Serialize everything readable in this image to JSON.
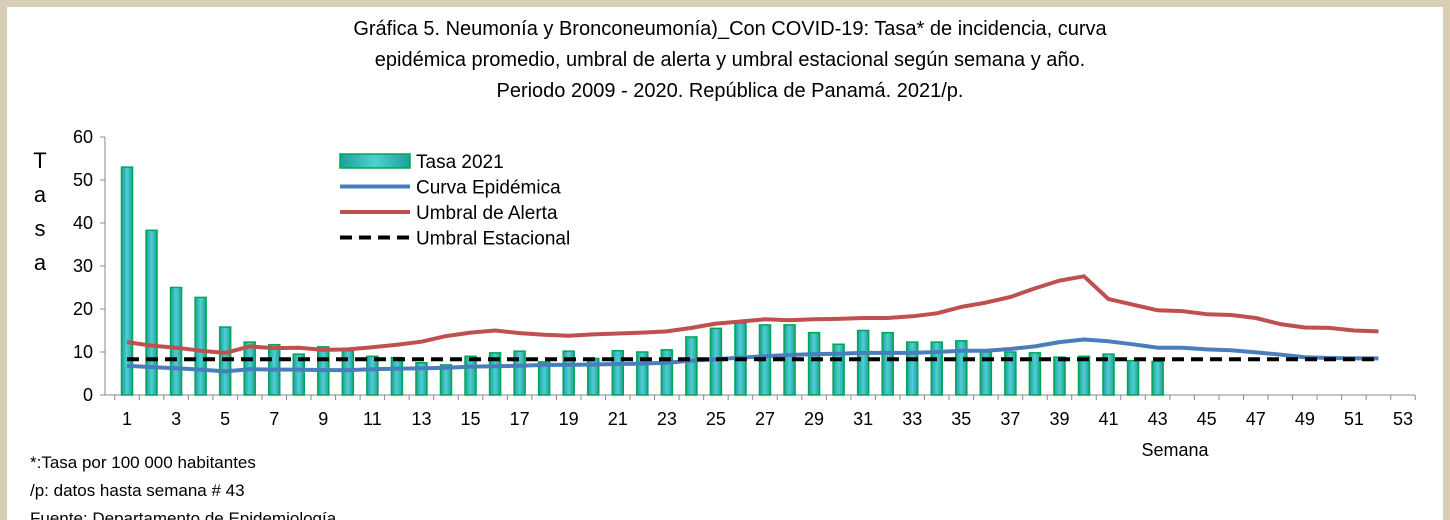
{
  "chart_data": {
    "type": "bar-line",
    "title": [
      "Gráfica 5. Neumonía y Bronconeumonía)_Con COVID-19: Tasa* de incidencia, curva",
      "epidémica promedio, umbral de alerta  y umbral estacional según semana y año.",
      "Periodo 2009 - 2020.  República de Panamá. 2021/p."
    ],
    "y_label": "Tasa",
    "x_label": "Semana",
    "notes": [
      "*:Tasa por 100 000 habitantes",
      "/p: datos hasta semana # 43",
      " Fuente: Departamento de Epidemiología"
    ],
    "categories": [
      1,
      null,
      3,
      null,
      5,
      null,
      7,
      null,
      9,
      null,
      11,
      null,
      13,
      null,
      15,
      null,
      17,
      null,
      19,
      null,
      21,
      null,
      23,
      null,
      25,
      null,
      27,
      null,
      29,
      null,
      31,
      null,
      33,
      null,
      35,
      null,
      37,
      null,
      39,
      null,
      41,
      null,
      43,
      null,
      45,
      null,
      47,
      null,
      49,
      null,
      51,
      null,
      53
    ],
    "ylim": [
      0,
      60
    ],
    "yticks": [
      0,
      10,
      20,
      30,
      40,
      50,
      60
    ],
    "legend": "upper-left",
    "series": [
      {
        "name": "Tasa 2021",
        "kind": "bar",
        "color": "#2bb5b5",
        "edge": "#00a651",
        "values": [
          53,
          38.3,
          25,
          22.7,
          15.8,
          12.3,
          11.7,
          9.5,
          11.2,
          10.3,
          9,
          8.7,
          7.5,
          7,
          9,
          9.8,
          10.2,
          7.7,
          10.2,
          8.5,
          10.3,
          10,
          10.5,
          13.5,
          15.5,
          16.7,
          16.3,
          16.3,
          14.5,
          11.8,
          15,
          14.5,
          12.3,
          12.3,
          12.6,
          10,
          10,
          9.8,
          8.8,
          9,
          9.5,
          8,
          7.8,
          null,
          null,
          null,
          null,
          null,
          null,
          null,
          null,
          null,
          null
        ]
      },
      {
        "name": "Curva Epidémica",
        "kind": "line",
        "color": "#4a7ebb",
        "dash": false,
        "values": [
          6.8,
          6.5,
          6.2,
          5.9,
          5.5,
          6.0,
          5.9,
          5.9,
          5.8,
          5.8,
          6.0,
          6.1,
          6.2,
          6.3,
          6.6,
          6.7,
          6.8,
          7.0,
          7.0,
          7.1,
          7.2,
          7.3,
          7.5,
          8.0,
          8.3,
          8.7,
          9.0,
          9.3,
          9.5,
          9.6,
          9.8,
          9.8,
          9.8,
          10.0,
          10.3,
          10.3,
          10.7,
          11.3,
          12.3,
          12.9,
          12.5,
          11.8,
          11.0,
          11.0,
          10.6,
          10.4,
          9.9,
          9.4,
          8.8,
          8.6,
          8.5,
          8.5,
          null
        ]
      },
      {
        "name": "Umbral de Alerta",
        "kind": "line",
        "color": "#c0504d",
        "dash": false,
        "values": [
          12.3,
          11.5,
          11,
          10.3,
          9.8,
          11.3,
          10.9,
          11,
          10.5,
          10.6,
          11.1,
          11.7,
          12.4,
          13.7,
          14.5,
          15,
          14.4,
          14,
          13.8,
          14.1,
          14.3,
          14.5,
          14.8,
          15.6,
          16.6,
          17.1,
          17.6,
          17.4,
          17.6,
          17.7,
          17.9,
          17.9,
          18.3,
          19,
          20.5,
          21.5,
          22.8,
          24.8,
          26.6,
          27.6,
          22.3,
          21,
          19.7,
          19.5,
          18.8,
          18.6,
          17.9,
          16.5,
          15.7,
          15.6,
          15,
          14.8,
          null
        ]
      },
      {
        "name": "Umbral Estacional",
        "kind": "line",
        "color": "#000000",
        "dash": true,
        "values": [
          8.3,
          8.3,
          8.3,
          8.3,
          8.3,
          8.3,
          8.3,
          8.3,
          8.3,
          8.3,
          8.3,
          8.3,
          8.3,
          8.3,
          8.3,
          8.3,
          8.3,
          8.3,
          8.3,
          8.3,
          8.3,
          8.3,
          8.3,
          8.3,
          8.3,
          8.3,
          8.3,
          8.3,
          8.3,
          8.3,
          8.3,
          8.3,
          8.3,
          8.3,
          8.3,
          8.3,
          8.3,
          8.3,
          8.3,
          8.3,
          8.3,
          8.3,
          8.3,
          8.3,
          8.3,
          8.3,
          8.3,
          8.3,
          8.3,
          8.3,
          8.3,
          8.3,
          null
        ]
      }
    ]
  }
}
